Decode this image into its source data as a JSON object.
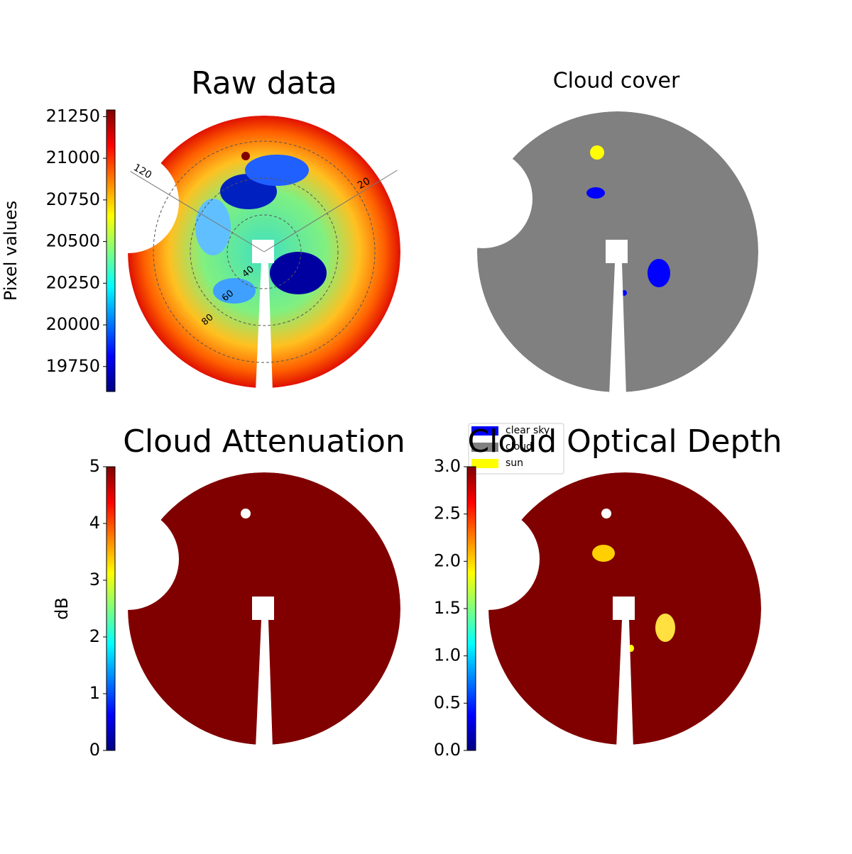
{
  "chart_data": [
    {
      "type": "image",
      "title": "Raw data",
      "colormap": "jet",
      "colorbar": {
        "label": "Pixel values",
        "ylim": [
          19600,
          21290
        ],
        "yticks": [
          19750,
          20000,
          20250,
          20500,
          20750,
          21000,
          21250
        ]
      },
      "rticks": [
        40,
        60,
        80
      ],
      "thetaticks": [
        20,
        120
      ]
    },
    {
      "type": "image",
      "title": "Cloud cover",
      "legend": [
        {
          "name": "clear sky",
          "color": "#0000ff"
        },
        {
          "name": "cloud",
          "color": "#808080"
        },
        {
          "name": "sun",
          "color": "#ffff00"
        }
      ]
    },
    {
      "type": "image",
      "title": "Cloud Attenuation",
      "colormap": "jet",
      "colorbar": {
        "label": "dB",
        "ylim": [
          0,
          5
        ],
        "yticks": [
          0,
          1,
          2,
          3,
          4,
          5
        ]
      }
    },
    {
      "type": "image",
      "title": "Cloud Optical Depth",
      "colormap": "jet",
      "colorbar": {
        "ylim": [
          0,
          3
        ],
        "yticks": [
          {
            "value": 0,
            "label": "0.0"
          },
          0.5,
          {
            "value": 1,
            "label": "1.0"
          },
          1.5,
          {
            "value": 2,
            "label": "2.0"
          },
          2.5,
          {
            "value": 3,
            "label": "3.0"
          }
        ]
      }
    }
  ]
}
